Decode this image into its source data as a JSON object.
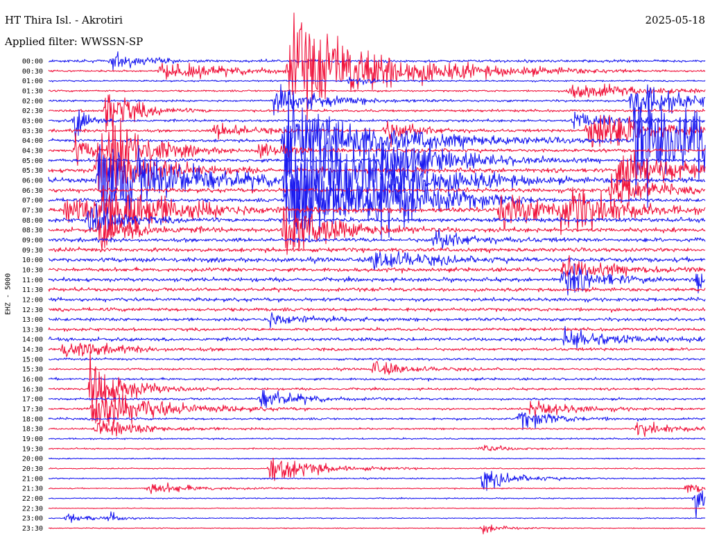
{
  "header": {
    "title": "HT Thira Isl. - Akrotiri",
    "date": "2025-05-18",
    "filter": "Applied filter: WWSSN-SP"
  },
  "channel_label": "EHZ - 5000",
  "colors": {
    "even_row": "#1a1af0",
    "odd_row": "#f0143c"
  },
  "chart_data": {
    "type": "line",
    "title": "HT Thira Isl. - Akrotiri",
    "subtitle": "Applied filter: WWSSN-SP",
    "ylabel": "EHZ - 5000",
    "row_start_labels": [
      "00:00",
      "00:30",
      "01:00",
      "01:30",
      "02:00",
      "02:30",
      "03:00",
      "03:30",
      "04:00",
      "04:30",
      "05:00",
      "05:30",
      "06:00",
      "06:30",
      "07:00",
      "07:30",
      "08:00",
      "08:30",
      "09:00",
      "09:30",
      "10:00",
      "10:30",
      "11:00",
      "11:30",
      "12:00",
      "12:30",
      "13:00",
      "13:30",
      "14:00",
      "14:30",
      "15:00",
      "15:30",
      "16:00",
      "16:30",
      "17:00",
      "17:30",
      "18:00",
      "18:30",
      "19:00",
      "19:30",
      "20:00",
      "20:30",
      "21:00",
      "21:30",
      "22:00",
      "22:30",
      "23:00",
      "23:30"
    ],
    "row_minutes": 30,
    "noise_level": [
      1.2,
      0.9,
      0.7,
      0.8,
      1.0,
      1.1,
      1.2,
      1.3,
      1.3,
      1.5,
      1.6,
      1.9,
      2.2,
      1.8,
      1.7,
      2.2,
      1.9,
      2.0,
      1.8,
      1.8,
      2.0,
      1.8,
      1.7,
      1.6,
      1.6,
      1.6,
      1.5,
      1.4,
      1.6,
      1.3,
      1.0,
      1.0,
      1.1,
      1.0,
      1.0,
      0.9,
      1.0,
      0.8,
      0.7,
      0.6,
      0.5,
      0.5,
      0.6,
      0.5,
      0.5,
      0.4,
      0.5,
      0.4
    ],
    "events": [
      {
        "row": 0,
        "min": 2.9,
        "amp": 10,
        "dur": 1.2
      },
      {
        "row": 1,
        "min": 5.1,
        "amp": 8,
        "dur": 3.5
      },
      {
        "row": 1,
        "min": 11.0,
        "amp": 50,
        "dur": 4
      },
      {
        "row": 2,
        "min": 13.7,
        "amp": 5,
        "dur": 1
      },
      {
        "row": 3,
        "min": 23.8,
        "amp": 9,
        "dur": 3
      },
      {
        "row": 4,
        "min": 10.3,
        "amp": 15,
        "dur": 2
      },
      {
        "row": 4,
        "min": 26.6,
        "amp": 22,
        "dur": 2
      },
      {
        "row": 5,
        "min": 2.6,
        "amp": 28,
        "dur": 1.2
      },
      {
        "row": 6,
        "min": 1.2,
        "amp": 20,
        "dur": 0.5
      },
      {
        "row": 6,
        "min": 24.0,
        "amp": 9,
        "dur": 2
      },
      {
        "row": 7,
        "min": 7.6,
        "amp": 8,
        "dur": 1.5
      },
      {
        "row": 7,
        "min": 15.4,
        "amp": 14,
        "dur": 1.2
      },
      {
        "row": 7,
        "min": 24.6,
        "amp": 30,
        "dur": 2
      },
      {
        "row": 8,
        "min": 10.7,
        "amp": 40,
        "dur": 4
      },
      {
        "row": 8,
        "min": 26.8,
        "amp": 60,
        "dur": 6
      },
      {
        "row": 9,
        "min": 1.2,
        "amp": 14,
        "dur": 0.8
      },
      {
        "row": 9,
        "min": 2.8,
        "amp": 42,
        "dur": 1.5
      },
      {
        "row": 9,
        "min": 9.6,
        "amp": 8,
        "dur": 1.2
      },
      {
        "row": 10,
        "min": 15.2,
        "amp": 30,
        "dur": 2.5
      },
      {
        "row": 11,
        "min": 2.2,
        "amp": 35,
        "dur": 2
      },
      {
        "row": 11,
        "min": 26.0,
        "amp": 22,
        "dur": 3
      },
      {
        "row": 12,
        "min": 2.3,
        "amp": 52,
        "dur": 3
      },
      {
        "row": 12,
        "min": 10.8,
        "amp": 70,
        "dur": 3
      },
      {
        "row": 12,
        "min": 14.4,
        "amp": 16,
        "dur": 3
      },
      {
        "row": 13,
        "min": 25.7,
        "amp": 22,
        "dur": 1.5
      },
      {
        "row": 14,
        "min": 10.9,
        "amp": 60,
        "dur": 3
      },
      {
        "row": 14,
        "min": 14.5,
        "amp": 30,
        "dur": 2
      },
      {
        "row": 15,
        "min": 0.8,
        "amp": 14,
        "dur": 2.5
      },
      {
        "row": 15,
        "min": 2.5,
        "amp": 30,
        "dur": 2.5
      },
      {
        "row": 15,
        "min": 20.6,
        "amp": 25,
        "dur": 1.5
      },
      {
        "row": 15,
        "min": 23.4,
        "amp": 30,
        "dur": 2
      },
      {
        "row": 16,
        "min": 1.8,
        "amp": 18,
        "dur": 1.5
      },
      {
        "row": 17,
        "min": 2.3,
        "amp": 20,
        "dur": 1.5
      },
      {
        "row": 17,
        "min": 10.7,
        "amp": 30,
        "dur": 2
      },
      {
        "row": 18,
        "min": 17.6,
        "amp": 10,
        "dur": 1.5
      },
      {
        "row": 20,
        "min": 14.8,
        "amp": 12,
        "dur": 2
      },
      {
        "row": 21,
        "min": 23.5,
        "amp": 10,
        "dur": 2.5
      },
      {
        "row": 22,
        "min": 23.5,
        "amp": 18,
        "dur": 1.5
      },
      {
        "row": 22,
        "min": 29.6,
        "amp": 14,
        "dur": 1
      },
      {
        "row": 26,
        "min": 10.0,
        "amp": 8,
        "dur": 1.5
      },
      {
        "row": 28,
        "min": 23.6,
        "amp": 12,
        "dur": 2
      },
      {
        "row": 29,
        "min": 0.6,
        "amp": 10,
        "dur": 2
      },
      {
        "row": 31,
        "min": 14.8,
        "amp": 8,
        "dur": 1.5
      },
      {
        "row": 33,
        "min": 1.9,
        "amp": 30,
        "dur": 1.5
      },
      {
        "row": 34,
        "min": 9.7,
        "amp": 12,
        "dur": 1.5
      },
      {
        "row": 35,
        "min": 2.0,
        "amp": 25,
        "dur": 2.5
      },
      {
        "row": 35,
        "min": 22.0,
        "amp": 8,
        "dur": 2
      },
      {
        "row": 36,
        "min": 21.5,
        "amp": 10,
        "dur": 1.5
      },
      {
        "row": 37,
        "min": 2.2,
        "amp": 10,
        "dur": 2
      },
      {
        "row": 37,
        "min": 26.9,
        "amp": 8,
        "dur": 1.5
      },
      {
        "row": 39,
        "min": 19.7,
        "amp": 5,
        "dur": 1
      },
      {
        "row": 41,
        "min": 10.1,
        "amp": 14,
        "dur": 2
      },
      {
        "row": 42,
        "min": 19.8,
        "amp": 10,
        "dur": 1.5
      },
      {
        "row": 43,
        "min": 4.5,
        "amp": 6,
        "dur": 2
      },
      {
        "row": 43,
        "min": 29.1,
        "amp": 8,
        "dur": 1
      },
      {
        "row": 44,
        "min": 29.5,
        "amp": 16,
        "dur": 1
      },
      {
        "row": 46,
        "min": 0.8,
        "amp": 6,
        "dur": 1
      },
      {
        "row": 46,
        "min": 2.8,
        "amp": 5,
        "dur": 0.5
      },
      {
        "row": 47,
        "min": 19.8,
        "amp": 5,
        "dur": 1
      }
    ]
  }
}
